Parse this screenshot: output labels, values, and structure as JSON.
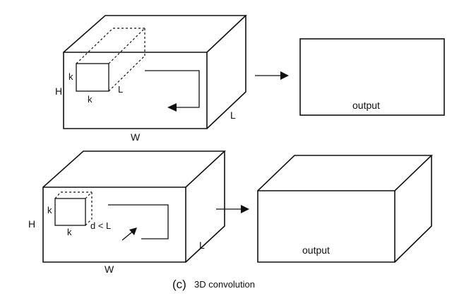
{
  "top": {
    "input_labels": {
      "height": "H",
      "width": "W",
      "length": "L"
    },
    "kernel_labels": {
      "side": "k",
      "bottom": "k",
      "depth": "L"
    },
    "output_label": "output"
  },
  "bottom": {
    "input_labels": {
      "height": "H",
      "width": "W",
      "length": "L"
    },
    "kernel_labels": {
      "side": "k",
      "bottom": "k",
      "depth": "d < L"
    },
    "output_label": "output"
  },
  "caption": {
    "letter": "(c)",
    "text": "3D convolution"
  }
}
